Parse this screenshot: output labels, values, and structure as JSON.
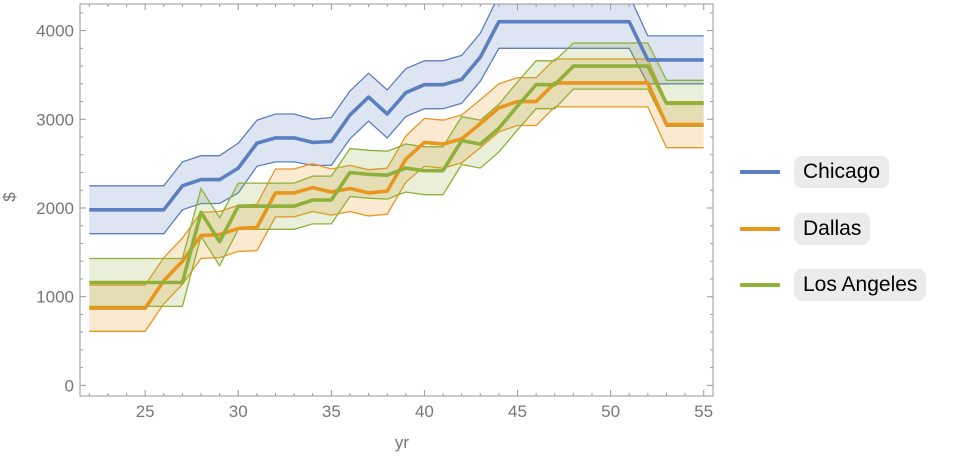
{
  "chart_data": {
    "type": "line",
    "xlabel": "yr",
    "ylabel": "$",
    "xlim": [
      21.5,
      55.5
    ],
    "ylim": [
      -120,
      4300
    ],
    "x_ticks": [
      25,
      30,
      35,
      40,
      45,
      50,
      55
    ],
    "y_ticks": [
      0,
      1000,
      2000,
      3000,
      4000
    ],
    "x_minor_step": 1,
    "y_minor_step": 200,
    "band_style": "confidence band around each series",
    "legend_position": "right",
    "series": [
      {
        "name": "Chicago",
        "color": "#5b7fbf",
        "x": [
          22,
          26,
          27,
          28,
          29,
          30,
          31,
          32,
          33,
          34,
          35,
          36,
          37,
          38,
          39,
          40,
          41,
          42,
          43,
          44,
          51,
          52,
          55
        ],
        "values": [
          1980,
          1980,
          2250,
          2320,
          2320,
          2450,
          2730,
          2790,
          2790,
          2740,
          2750,
          3050,
          3250,
          3060,
          3300,
          3390,
          3390,
          3450,
          3700,
          4100,
          4100,
          3670,
          3670
        ],
        "band": [
          270,
          270,
          270,
          270,
          270,
          280,
          260,
          270,
          270,
          260,
          270,
          270,
          270,
          270,
          270,
          270,
          270,
          270,
          270,
          300,
          300,
          270,
          270
        ]
      },
      {
        "name": "Dallas",
        "color": "#e8961e",
        "x": [
          22,
          25,
          26,
          27,
          28,
          29,
          30,
          31,
          32,
          33,
          34,
          35,
          36,
          37,
          38,
          39,
          40,
          41,
          42,
          43,
          44,
          45,
          46,
          47,
          48,
          52,
          53,
          55
        ],
        "values": [
          870,
          870,
          1180,
          1400,
          1690,
          1700,
          1770,
          1780,
          2170,
          2170,
          2230,
          2180,
          2220,
          2170,
          2190,
          2550,
          2740,
          2720,
          2780,
          2950,
          3130,
          3200,
          3200,
          3410,
          3410,
          3410,
          2940,
          2940
        ],
        "band": [
          260,
          260,
          260,
          260,
          260,
          260,
          260,
          260,
          270,
          270,
          270,
          260,
          260,
          260,
          260,
          260,
          270,
          270,
          270,
          270,
          270,
          270,
          270,
          270,
          270,
          270,
          260,
          260
        ]
      },
      {
        "name": "Los Angeles",
        "color": "#8fb03a",
        "x": [
          22,
          25,
          26,
          27,
          28,
          29,
          30,
          33,
          34,
          35,
          36,
          37,
          38,
          39,
          40,
          41,
          42,
          43,
          44,
          45,
          46,
          47,
          48,
          51,
          52,
          53,
          55
        ],
        "values": [
          1160,
          1160,
          1160,
          1160,
          1950,
          1620,
          2020,
          2020,
          2090,
          2090,
          2400,
          2380,
          2370,
          2450,
          2420,
          2420,
          2760,
          2720,
          2900,
          3150,
          3390,
          3390,
          3600,
          3600,
          3600,
          3180,
          3180
        ],
        "band": [
          270,
          270,
          270,
          270,
          270,
          270,
          260,
          260,
          270,
          270,
          270,
          270,
          270,
          270,
          270,
          270,
          270,
          270,
          270,
          270,
          270,
          270,
          260,
          260,
          260,
          260,
          260
        ]
      }
    ]
  }
}
